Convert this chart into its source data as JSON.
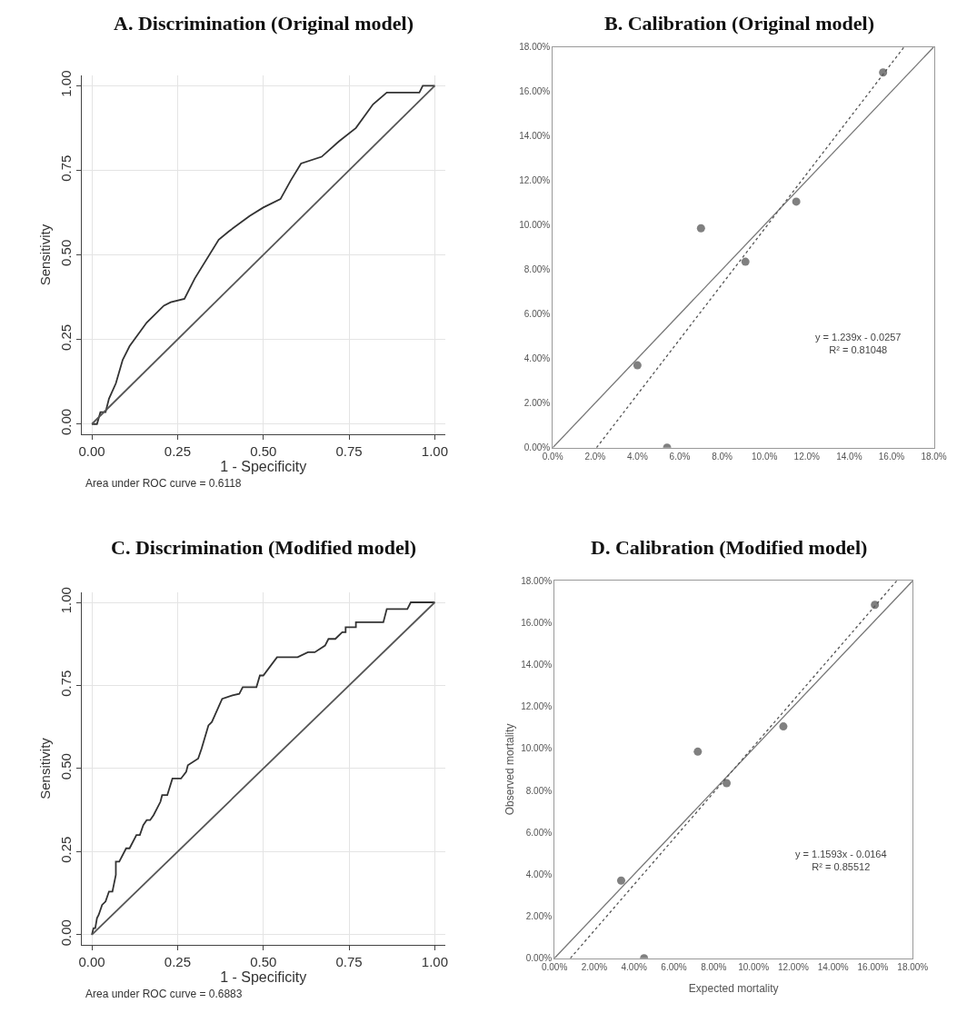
{
  "chart_data": [
    {
      "type": "line",
      "title": "A. Discrimination (Original model)",
      "xlabel": "1 - Specificity",
      "ylabel": "Sensitivity",
      "series": [
        {
          "color": "#333333",
          "x": [
            0,
            0.015,
            0.025,
            0.04,
            0.05,
            0.07,
            0.09,
            0.11,
            0.16,
            0.21,
            0.23,
            0.27,
            0.3,
            0.37,
            0.4,
            0.46,
            0.5,
            0.55,
            0.58,
            0.61,
            0.67,
            0.72,
            0.77,
            0.82,
            0.86,
            0.955,
            0.965,
            1
          ],
          "values": [
            0,
            0,
            0.035,
            0.035,
            0.075,
            0.12,
            0.19,
            0.23,
            0.3,
            0.35,
            0.36,
            0.37,
            0.43,
            0.545,
            0.57,
            0.615,
            0.64,
            0.665,
            0.72,
            0.77,
            0.79,
            0.835,
            0.875,
            0.945,
            0.98,
            0.98,
            1,
            1
          ]
        },
        {
          "color": "#555555",
          "x": [
            0,
            1
          ],
          "values": [
            0,
            1
          ]
        }
      ],
      "xlim": [
        -0.03,
        1.03
      ],
      "ylim": [
        -0.03,
        1.03
      ],
      "xticks": [
        {
          "value": 0,
          "label": "0.00"
        },
        {
          "value": 0.25,
          "label": "0.25"
        },
        {
          "value": 0.5,
          "label": "0.50"
        },
        {
          "value": 0.75,
          "label": "0.75"
        },
        {
          "value": 1,
          "label": "1.00"
        }
      ],
      "yticks": [
        {
          "value": 0,
          "label": "0.00"
        },
        {
          "value": 0.25,
          "label": "0.25"
        },
        {
          "value": 0.5,
          "label": "0.50"
        },
        {
          "value": 0.75,
          "label": "0.75"
        },
        {
          "value": 1,
          "label": "1.00"
        }
      ],
      "grid": true,
      "marker": "none",
      "annotations": [
        "Area under ROC curve = 0.6118"
      ]
    },
    {
      "type": "scatter",
      "title": "B. Calibration (Original model)",
      "series": [
        {
          "type": "scatter",
          "color": "#808080",
          "marker": "circle",
          "x": [
            4.0,
            5.4,
            7.0,
            9.1,
            11.5,
            15.6
          ],
          "values": [
            3.7,
            0.0,
            9.85,
            8.35,
            11.05,
            16.85
          ]
        },
        {
          "type": "line",
          "color": "#777777",
          "line_style": "solid",
          "x": [
            0,
            18
          ],
          "values": [
            0,
            18
          ]
        },
        {
          "type": "line",
          "color": "#555555",
          "line_style": "dotted",
          "x": [
            2.07,
            16.6
          ],
          "values": [
            0,
            18
          ]
        }
      ],
      "xlim": [
        0,
        18
      ],
      "ylim": [
        0,
        18
      ],
      "xticks": [
        {
          "value": 0,
          "label": "0.0%"
        },
        {
          "value": 2,
          "label": "2.0%"
        },
        {
          "value": 4,
          "label": "4.0%"
        },
        {
          "value": 6,
          "label": "6.0%"
        },
        {
          "value": 8,
          "label": "8.0%"
        },
        {
          "value": 10,
          "label": "10.0%"
        },
        {
          "value": 12,
          "label": "12.0%"
        },
        {
          "value": 14,
          "label": "14.0%"
        },
        {
          "value": 16,
          "label": "16.0%"
        },
        {
          "value": 18,
          "label": "18.0%"
        }
      ],
      "yticks": [
        {
          "value": 0,
          "label": "0.00%"
        },
        {
          "value": 2,
          "label": "2.00%"
        },
        {
          "value": 4,
          "label": "4.00%"
        },
        {
          "value": 6,
          "label": "6.00%"
        },
        {
          "value": 8,
          "label": "8.00%"
        },
        {
          "value": 10,
          "label": "10.00%"
        },
        {
          "value": 12,
          "label": "12.00%"
        },
        {
          "value": 14,
          "label": "14.00%"
        },
        {
          "value": 16,
          "label": "16.00%"
        },
        {
          "value": 18,
          "label": "18.00%"
        }
      ],
      "annotations": [
        "y = 1.239x - 0.0257\nR² = 0.81048"
      ]
    },
    {
      "type": "line",
      "title": "C. Discrimination (Modified model)",
      "xlabel": "1 - Specificity",
      "ylabel": "Sensitivity",
      "series": [
        {
          "color": "#333333",
          "x": [
            0,
            0.005,
            0.01,
            0.015,
            0.02,
            0.03,
            0.04,
            0.05,
            0.06,
            0.07,
            0.07,
            0.08,
            0.1,
            0.11,
            0.13,
            0.14,
            0.15,
            0.16,
            0.17,
            0.18,
            0.2,
            0.205,
            0.22,
            0.235,
            0.26,
            0.275,
            0.28,
            0.31,
            0.32,
            0.34,
            0.35,
            0.38,
            0.41,
            0.43,
            0.44,
            0.48,
            0.49,
            0.5,
            0.54,
            0.6,
            0.63,
            0.65,
            0.68,
            0.69,
            0.71,
            0.73,
            0.74,
            0.74,
            0.77,
            0.77,
            0.85,
            0.86,
            0.92,
            0.93,
            1
          ],
          "values": [
            0,
            0.02,
            0.02,
            0.05,
            0.06,
            0.09,
            0.1,
            0.13,
            0.13,
            0.18,
            0.22,
            0.22,
            0.26,
            0.26,
            0.3,
            0.3,
            0.33,
            0.345,
            0.345,
            0.36,
            0.4,
            0.42,
            0.42,
            0.47,
            0.47,
            0.49,
            0.51,
            0.53,
            0.56,
            0.63,
            0.64,
            0.71,
            0.72,
            0.725,
            0.745,
            0.745,
            0.78,
            0.78,
            0.835,
            0.835,
            0.85,
            0.85,
            0.87,
            0.89,
            0.89,
            0.91,
            0.91,
            0.925,
            0.925,
            0.94,
            0.94,
            0.98,
            0.98,
            1,
            1
          ]
        },
        {
          "color": "#555555",
          "x": [
            0,
            1
          ],
          "values": [
            0,
            1
          ]
        }
      ],
      "xlim": [
        -0.03,
        1.03
      ],
      "ylim": [
        -0.03,
        1.03
      ],
      "xticks": [
        {
          "value": 0,
          "label": "0.00"
        },
        {
          "value": 0.25,
          "label": "0.25"
        },
        {
          "value": 0.5,
          "label": "0.50"
        },
        {
          "value": 0.75,
          "label": "0.75"
        },
        {
          "value": 1,
          "label": "1.00"
        }
      ],
      "yticks": [
        {
          "value": 0,
          "label": "0.00"
        },
        {
          "value": 0.25,
          "label": "0.25"
        },
        {
          "value": 0.5,
          "label": "0.50"
        },
        {
          "value": 0.75,
          "label": "0.75"
        },
        {
          "value": 1,
          "label": "1.00"
        }
      ],
      "grid": true,
      "marker": "none",
      "annotations": [
        "Area under ROC curve = 0.6883"
      ]
    },
    {
      "type": "scatter",
      "title": "D. Calibration (Modified model)",
      "xlabel": "Expected mortality",
      "ylabel": "Observed mortality",
      "series": [
        {
          "type": "scatter",
          "color": "#808080",
          "marker": "circle",
          "x": [
            3.35,
            4.5,
            7.2,
            8.65,
            11.5,
            16.1
          ],
          "values": [
            3.7,
            0.0,
            9.85,
            8.35,
            11.05,
            16.85
          ]
        },
        {
          "type": "line",
          "color": "#777777",
          "line_style": "solid",
          "x": [
            0,
            18
          ],
          "values": [
            0,
            18
          ]
        },
        {
          "type": "line",
          "color": "#555555",
          "line_style": "dotted",
          "x": [
            0.8,
            17.2
          ],
          "values": [
            0,
            18
          ]
        }
      ],
      "xlim": [
        0,
        18
      ],
      "ylim": [
        0,
        18
      ],
      "xticks": [
        {
          "value": 0,
          "label": "0.00%"
        },
        {
          "value": 2,
          "label": "2.00%"
        },
        {
          "value": 4,
          "label": "4.00%"
        },
        {
          "value": 6,
          "label": "6.00%"
        },
        {
          "value": 8,
          "label": "8.00%"
        },
        {
          "value": 10,
          "label": "10.00%"
        },
        {
          "value": 12,
          "label": "12.00%"
        },
        {
          "value": 14,
          "label": "14.00%"
        },
        {
          "value": 16,
          "label": "16.00%"
        },
        {
          "value": 18,
          "label": "18.00%"
        }
      ],
      "yticks": [
        {
          "value": 0,
          "label": "0.00%"
        },
        {
          "value": 2,
          "label": "2.00%"
        },
        {
          "value": 4,
          "label": "4.00%"
        },
        {
          "value": 6,
          "label": "6.00%"
        },
        {
          "value": 8,
          "label": "8.00%"
        },
        {
          "value": 10,
          "label": "10.00%"
        },
        {
          "value": 12,
          "label": "12.00%"
        },
        {
          "value": 14,
          "label": "14.00%"
        },
        {
          "value": 16,
          "label": "16.00%"
        },
        {
          "value": 18,
          "label": "18.00%"
        }
      ],
      "annotations": [
        "y = 1.1593x - 0.0164\nR² = 0.85512"
      ]
    }
  ]
}
